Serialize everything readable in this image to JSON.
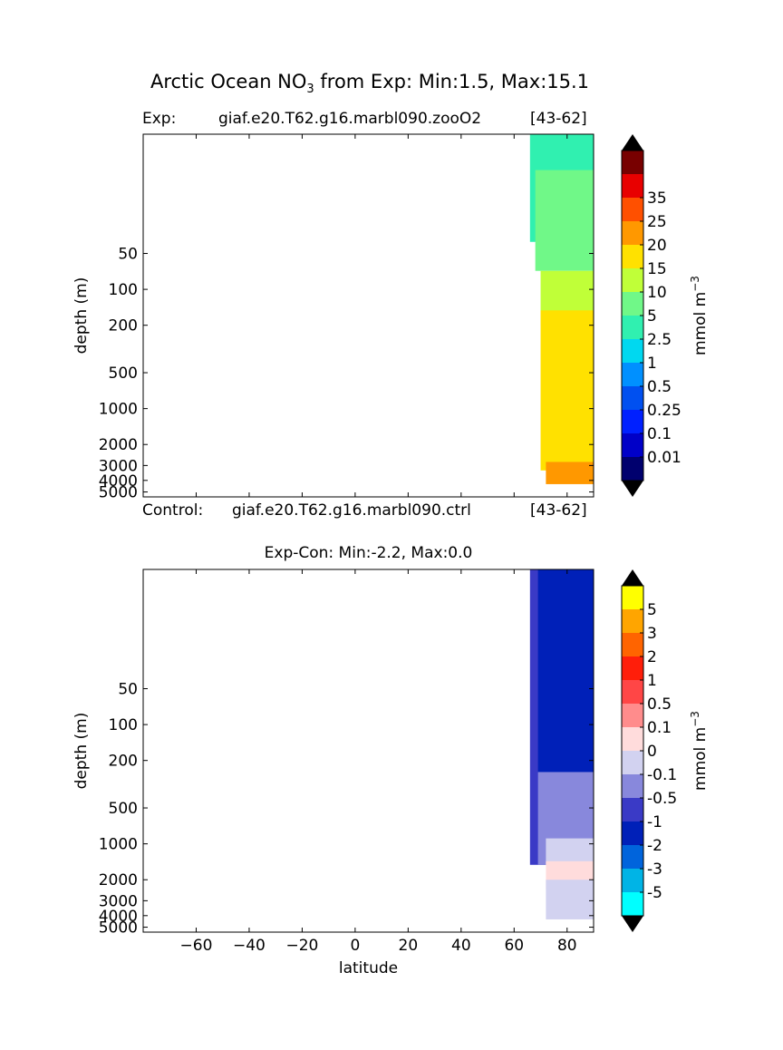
{
  "figure": {
    "title": "Arctic Ocean NO",
    "title_sub": "3",
    "title_rest": " from Exp: Min:1.5, Max:15.1",
    "exp_prefix": "Exp:",
    "exp_case": "giaf.e20.T62.g16.marbl090.zooO2",
    "exp_years": "[43-62]",
    "ctl_prefix": "Control:",
    "ctl_case": "giaf.e20.T62.g16.marbl090.ctrl",
    "ctl_years": "[43-62]",
    "diff_title": "Exp-Con: Min:-2.2, Max:0.0",
    "colorbar_unit": "mmol m",
    "colorbar_unit_sup": "−3"
  },
  "colors": {
    "top_levels": [
      "#00006e",
      "#0000c8",
      "#0020ff",
      "#0050f0",
      "#0090ff",
      "#00d8f0",
      "#30f0b0",
      "#70f888",
      "#c0ff38",
      "#ffe100",
      "#ff9800",
      "#ff5000",
      "#e80000",
      "#780000"
    ],
    "diff_levels": [
      "#00ffff",
      "#00b4e6",
      "#0064dc",
      "#0020b8",
      "#3a3ac6",
      "#8888dc",
      "#d2d2f0",
      "#ffdcdc",
      "#ff8c8c",
      "#ff4646",
      "#ff1e0a",
      "#ff6400",
      "#ffa500",
      "#ffff00"
    ]
  },
  "chart_data": [
    {
      "type": "heatmap",
      "title": "Exp:  giaf.e20.T62.g16.marbl090.zooO2  [43-62]",
      "xlabel": "",
      "ylabel": "depth (m)",
      "x_range": [
        -80,
        90
      ],
      "y_range": [
        5500,
        5
      ],
      "y_scale": "log",
      "y_ticks": [
        50,
        100,
        200,
        500,
        1000,
        2000,
        3000,
        4000,
        5000
      ],
      "y_tick_labels": [
        "50",
        "100",
        "200",
        "500",
        "1000",
        "2000",
        "3000",
        "4000",
        "5000"
      ],
      "x_ticks": [
        -60,
        -40,
        -20,
        0,
        20,
        40,
        60,
        80
      ],
      "x_tick_labels": [],
      "colorbar": {
        "label": "mmol m^-3",
        "boundaries": [
          0.01,
          0.1,
          0.25,
          0.5,
          1,
          2.5,
          5,
          10,
          15,
          20,
          25,
          35
        ],
        "tick_labels": [
          "0.01",
          "0.1",
          "0.25",
          "0.5",
          "1",
          "2.5",
          "5",
          "10",
          "15",
          "20",
          "25",
          "35"
        ],
        "extend": "both"
      },
      "regions": [
        {
          "range": "1-2.5",
          "color_index": 6,
          "lat_start": 66,
          "depth_top": 5,
          "depth_bottom": 40
        },
        {
          "range": "2.5-5",
          "color_index": 7,
          "lat_start": 68,
          "depth_top": 10,
          "depth_bottom": 70
        },
        {
          "range": "5-10",
          "color_index": 8,
          "lat_start": 70,
          "depth_top": 70,
          "depth_bottom": 200
        },
        {
          "range": "10-15",
          "color_index": 9,
          "lat_start": 70,
          "depth_top": 150,
          "depth_bottom": 3300
        },
        {
          "range": "15-20",
          "color_index": 10,
          "lat_start": 72,
          "depth_top": 2800,
          "depth_bottom": 4300
        }
      ]
    },
    {
      "type": "heatmap",
      "title": "Exp-Con: Min:-2.2, Max:0.0",
      "xlabel": "latitude",
      "ylabel": "depth (m)",
      "x_range": [
        -80,
        90
      ],
      "y_range": [
        5500,
        5
      ],
      "y_scale": "log",
      "y_ticks": [
        50,
        100,
        200,
        500,
        1000,
        2000,
        3000,
        4000,
        5000
      ],
      "y_tick_labels": [
        "50",
        "100",
        "200",
        "500",
        "1000",
        "2000",
        "3000",
        "4000",
        "5000"
      ],
      "x_ticks": [
        -60,
        -40,
        -20,
        0,
        20,
        40,
        60,
        80
      ],
      "x_tick_labels": [
        "−60",
        "−40",
        "−20",
        "0",
        "20",
        "40",
        "60",
        "80"
      ],
      "colorbar": {
        "label": "mmol m^-3",
        "boundaries": [
          -5,
          -3,
          -2,
          -1,
          -0.5,
          -0.1,
          0,
          0.1,
          0.5,
          1,
          2,
          3,
          5
        ],
        "tick_labels": [
          "-5",
          "-3",
          "-2",
          "-1",
          "-0.5",
          "-0.1",
          "0",
          "0.1",
          "0.5",
          "1",
          "2",
          "3",
          "5"
        ],
        "extend": "both"
      },
      "regions": [
        {
          "range": "-1 to -0.5",
          "color_index": 4,
          "lat_start": 66,
          "depth_top": 5,
          "depth_bottom": 1500
        },
        {
          "range": "-2 to -1",
          "color_index": 3,
          "lat_start": 69,
          "depth_top": 5,
          "depth_bottom": 1000
        },
        {
          "range": "-0.5 to -0.1",
          "color_index": 5,
          "lat_start": 69,
          "depth_top": 250,
          "depth_bottom": 1500
        },
        {
          "range": "-0.1 to 0",
          "color_index": 6,
          "lat_start": 72,
          "depth_top": 900,
          "depth_bottom": 1500
        },
        {
          "range": "0 to 0.1",
          "color_index": 7,
          "lat_start": 72,
          "depth_top": 1400,
          "depth_bottom": 2400
        },
        {
          "range": "-0.1 to 0",
          "color_index": 6,
          "lat_start": 72,
          "depth_top": 2000,
          "depth_bottom": 4300
        }
      ]
    }
  ]
}
